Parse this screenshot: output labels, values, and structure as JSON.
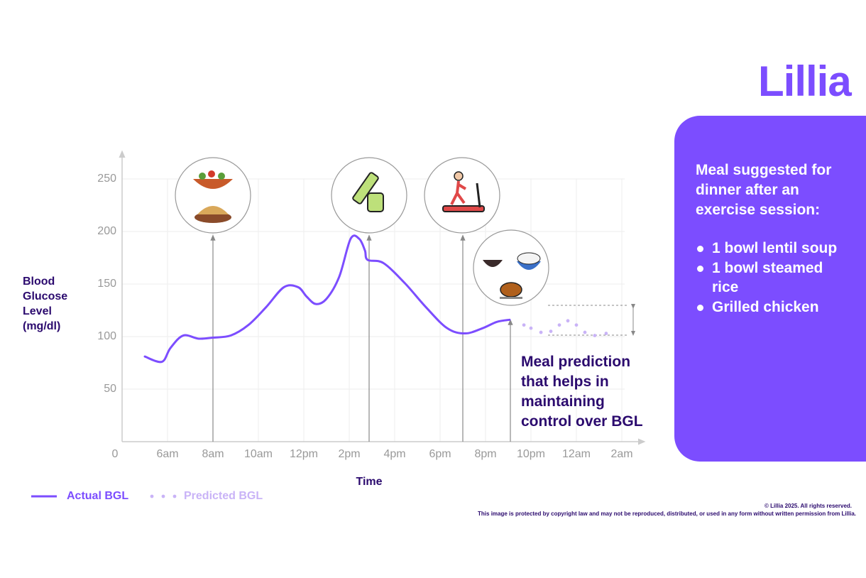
{
  "chart_data": {
    "type": "line",
    "x_label": "Time",
    "y_label": "Blood Glucose Level (mg/dl)",
    "annotation": "Meal prediction that helps in maintaining control over BGL",
    "x": [
      5,
      5.75,
      6.125,
      6.69,
      7.375,
      8,
      8.78,
      9.56,
      10.34,
      11.125,
      11.75,
      12.125,
      12.53,
      13,
      13.56,
      14.06,
      14.44,
      14.69,
      14.81,
      15.5,
      16.44,
      17.375,
      18.31,
      19.1,
      19.875,
      20.5,
      21.06,
      21.69,
      22,
      22.44,
      22.875,
      23.25,
      23.625,
      24,
      24.375,
      24.81,
      25.31
    ],
    "series": [
      {
        "name": "Actual BGL",
        "color": "#7c4dff",
        "style": "solid",
        "values": [
          81,
          76,
          89,
          101,
          98,
          99,
          101,
          111,
          128,
          147,
          147,
          138,
          131,
          136,
          157,
          193,
          193,
          182,
          173,
          170,
          151,
          128,
          108,
          103,
          108,
          114,
          116,
          null,
          null,
          null,
          null,
          null,
          null,
          null,
          null,
          null,
          null
        ]
      },
      {
        "name": "Predicted BGL",
        "color": "#c9b3f7",
        "style": "dotted",
        "values": [
          null,
          null,
          null,
          null,
          null,
          null,
          null,
          null,
          null,
          null,
          null,
          null,
          null,
          null,
          null,
          null,
          null,
          null,
          null,
          null,
          null,
          null,
          null,
          null,
          null,
          null,
          null,
          111,
          108,
          104,
          105,
          111,
          115,
          111,
          104,
          101,
          103
        ]
      }
    ],
    "xlim": [
      4,
      27
    ],
    "xticks": [
      {
        "value": 6,
        "label": "6am"
      },
      {
        "value": 8,
        "label": "8am"
      },
      {
        "value": 10,
        "label": "10am"
      },
      {
        "value": 12,
        "label": "12pm"
      },
      {
        "value": 14,
        "label": "2pm"
      },
      {
        "value": 16,
        "label": "4pm"
      },
      {
        "value": 18,
        "label": "6pm"
      },
      {
        "value": 20,
        "label": "8pm"
      },
      {
        "value": 22,
        "label": "10pm"
      },
      {
        "value": 24,
        "label": "12am"
      },
      {
        "value": 26,
        "label": "2am"
      }
    ],
    "ylim": [
      0,
      270
    ],
    "yticks": [
      0,
      50,
      100,
      150,
      200,
      250
    ],
    "grid": true
  },
  "panel": {
    "heading": "Meal suggested for dinner after an exercise session:",
    "items": [
      "1 bowl lentil soup",
      "1 bowl steamed rice",
      "Grilled chicken"
    ]
  },
  "brand": {
    "logo": "Lillia"
  },
  "footer": {
    "copyright": "© Lillia 2025. All rights reserved.",
    "notice": "This image is protected by copyright law and may not be reproduced, distributed, or used in any form without written permission from Lillia."
  }
}
